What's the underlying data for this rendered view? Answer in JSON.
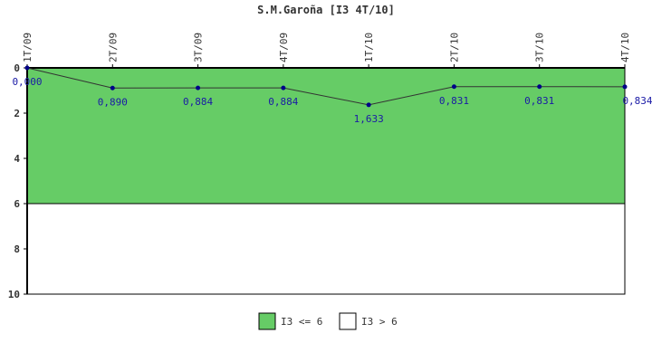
{
  "chart_data": {
    "type": "line",
    "title": "S.M.Garoña [I3 4T/10]",
    "xlabel": "",
    "ylabel": "",
    "categories": [
      "1T/09",
      "2T/09",
      "3T/09",
      "4T/09",
      "1T/10",
      "2T/10",
      "3T/10",
      "4T/10"
    ],
    "series": [
      {
        "values": [
          0.0,
          0.89,
          0.884,
          0.884,
          1.633,
          0.831,
          0.831,
          0.834
        ],
        "labels": [
          "0,000",
          "0,890",
          "0,884",
          "0,884",
          "1,633",
          "0,831",
          "0,831",
          "0,834"
        ],
        "color": "#000088"
      }
    ],
    "ylim": [
      0,
      10
    ],
    "y_inverted": true,
    "x_axis_position": "top",
    "yticks": [
      0,
      2,
      4,
      6,
      8,
      10
    ],
    "grid": false,
    "legend_placement": "bottom-center",
    "bands": [
      {
        "from": 0,
        "to": 6,
        "color": "#66cc66",
        "legend": "I3 <= 6"
      },
      {
        "from": 6,
        "to": 10,
        "color": "#ffffff",
        "legend": "I3 > 6"
      }
    ]
  }
}
